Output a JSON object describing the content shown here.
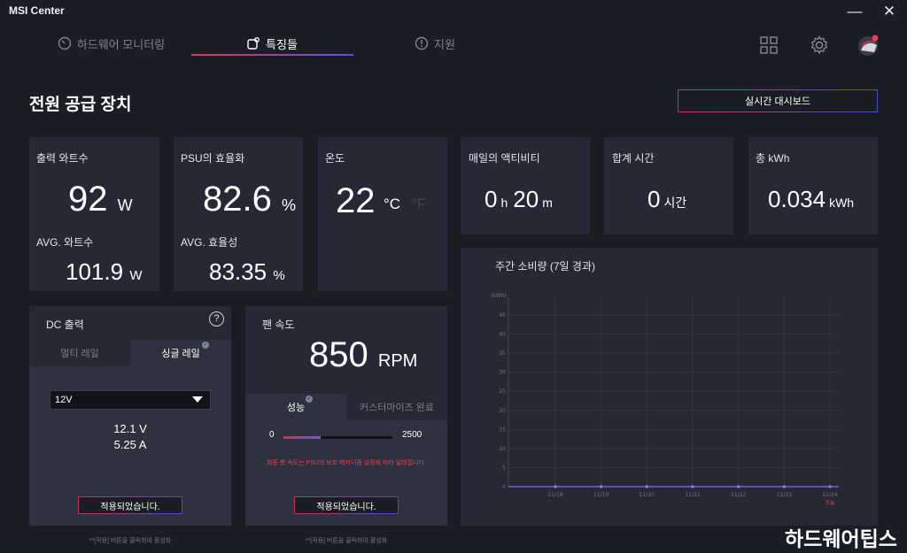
{
  "app": {
    "title": "MSI Center",
    "minimize": "—",
    "close": "✕"
  },
  "nav": {
    "tabs": [
      {
        "label": "하드웨어 모니터링",
        "icon": "gauge-icon"
      },
      {
        "label": "특징들",
        "icon": "feature-icon"
      },
      {
        "label": "지원",
        "icon": "info-icon"
      }
    ],
    "active_tab": 1
  },
  "page": {
    "title": "전원 공급 장치",
    "dashboard_button": "실시간 대시보드"
  },
  "output_watts": {
    "label": "출력 와트수",
    "value": "92",
    "unit": "W",
    "avg_label": "AVG. 와트수",
    "avg_value": "101.9",
    "avg_unit": "W"
  },
  "efficiency": {
    "label": "PSU의 효율화",
    "value": "82.6",
    "unit": "%",
    "avg_label": "AVG. 효율성",
    "avg_value": "83.35",
    "avg_unit": "%"
  },
  "temperature": {
    "label": "온도",
    "value": "22",
    "unit_c": "°C",
    "unit_f": "°F"
  },
  "daily_activity": {
    "label": "매일의 액티비티",
    "hours": "0",
    "h_unit": "h",
    "minutes": "20",
    "m_unit": "m"
  },
  "total_time": {
    "label": "합계 시간",
    "value": "0",
    "unit": "시간"
  },
  "total_kwh": {
    "label": "총 kWh",
    "value": "0.034",
    "unit": "kWh"
  },
  "dc_output": {
    "label": "DC 출력",
    "help": "?",
    "tabs": [
      "멀티 레일",
      "싱글 레일"
    ],
    "active_tab": 1,
    "rail_select": "12V",
    "voltage": "12.1 V",
    "current": "5.25 A",
    "applied": "적용되었습니다.",
    "hint": "**[적용] 버튼을 클릭하여 활성화"
  },
  "fan": {
    "label": "팬 속도",
    "value": "850",
    "unit": "RPM",
    "tabs": [
      "성능",
      "커스터마이즈 완료"
    ],
    "active_tab": 0,
    "slider_min": "0",
    "slider_max": "2500",
    "slider_value": 850,
    "warning": "최종 팬 속도는 PSU의 보호 메커니즘 설정에 따라 달라집니다.",
    "warning_color": "#e8404f",
    "applied": "적용되었습니다.",
    "hint": "**[적용] 버튼을 클릭하여 활성화"
  },
  "weekly": {
    "title": "주간 소비량 (7일 경과)",
    "today_label": "오늘"
  },
  "chart_data": {
    "type": "line",
    "title": "주간 소비량 (7일 경과)",
    "ylabel": "(kWh)",
    "xlabel": "",
    "categories": [
      "11/18",
      "11/19",
      "11/20",
      "11/21",
      "11/22",
      "11/23",
      "11/24"
    ],
    "values": [
      0,
      0,
      0,
      0,
      0,
      0,
      0
    ],
    "ylim": [
      0,
      45
    ],
    "yticks": [
      0,
      5,
      10,
      15,
      20,
      25,
      30,
      35,
      40,
      45
    ],
    "grid": true,
    "line_color": "#6c63d8",
    "today_color": "#e8404f"
  },
  "watermark": "하드웨어팁스"
}
